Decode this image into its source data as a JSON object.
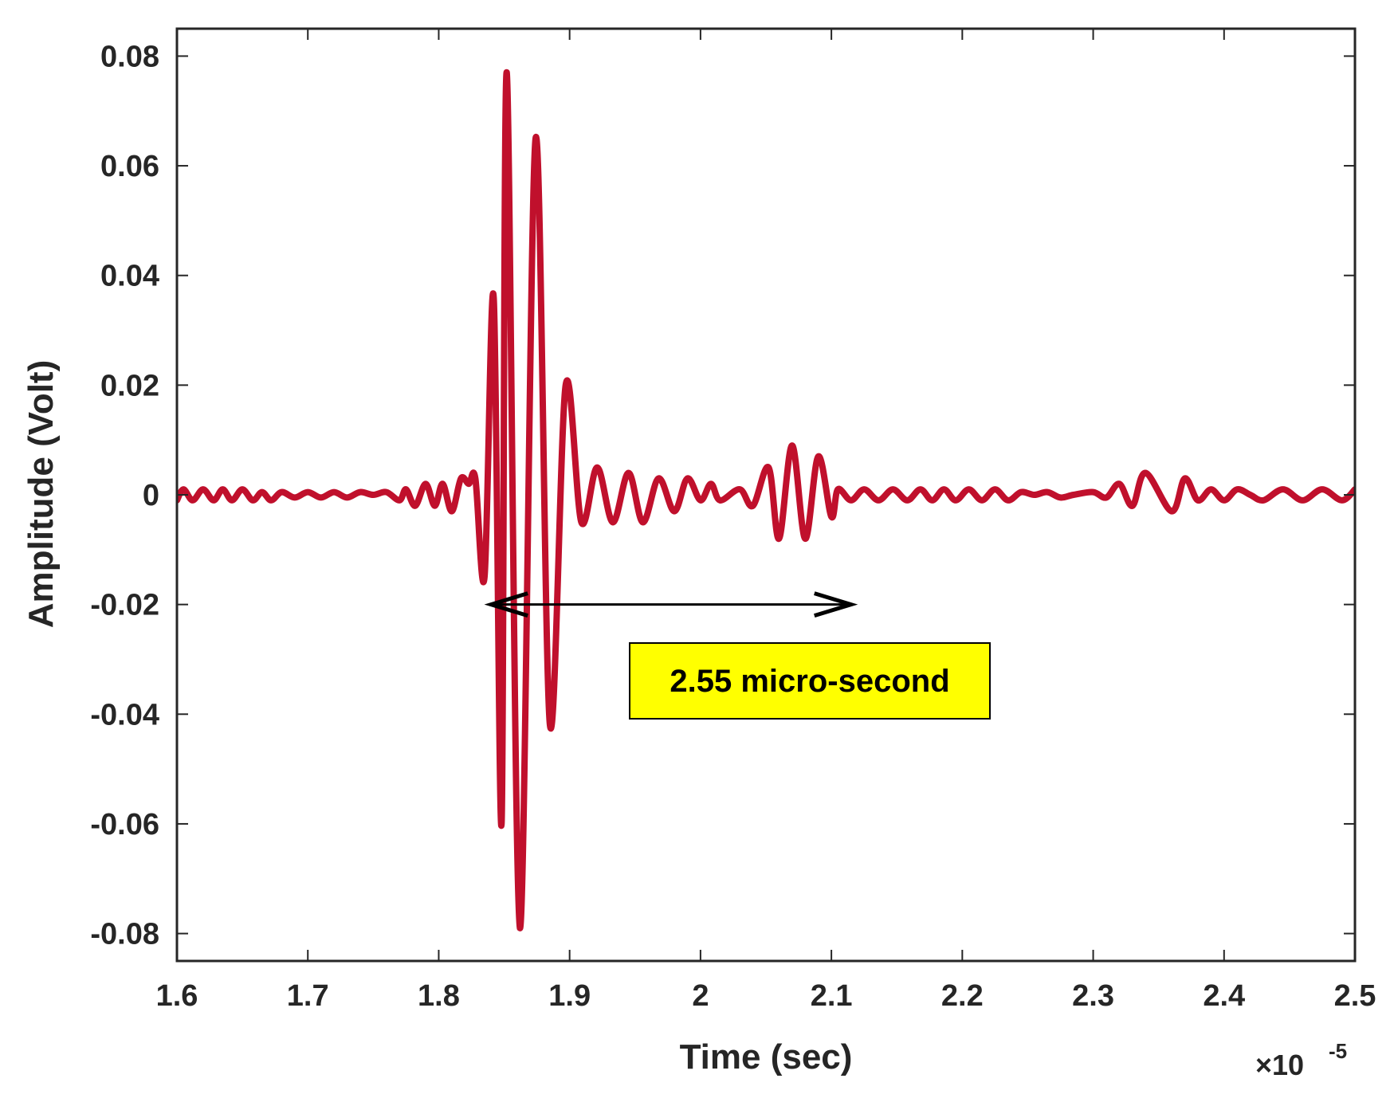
{
  "chart_data": {
    "type": "line",
    "title": "",
    "xlabel": "Time (sec)",
    "ylabel": "Amplitude (Volt)",
    "x_exponent_base": "×10",
    "x_exponent_power": "-5",
    "xlim": [
      1.6,
      2.5
    ],
    "ylim": [
      -0.085,
      0.085
    ],
    "x_ticks": [
      1.6,
      1.7,
      1.8,
      1.9,
      2.0,
      2.1,
      2.2,
      2.3,
      2.4,
      2.5
    ],
    "x_tick_labels": [
      "1.6",
      "1.7",
      "1.8",
      "1.9",
      "2",
      "2.1",
      "2.2",
      "2.3",
      "2.4",
      "2.5"
    ],
    "y_ticks": [
      0.08,
      0.06,
      0.04,
      0.02,
      0,
      -0.02,
      -0.04,
      -0.06,
      -0.08
    ],
    "y_tick_labels": [
      "0.08",
      "0.06",
      "0.04",
      "0.02",
      "0",
      "-0.02",
      "-0.04",
      "-0.06",
      "-0.08"
    ],
    "grid": false,
    "legend": "none",
    "series_color": "#c0102c",
    "series": [
      {
        "x": [
          1.6,
          1.605,
          1.612,
          1.62,
          1.628,
          1.635,
          1.642,
          1.65,
          1.658,
          1.665,
          1.672,
          1.68,
          1.69,
          1.7,
          1.71,
          1.72,
          1.73,
          1.74,
          1.75,
          1.76,
          1.77,
          1.775,
          1.782,
          1.79,
          1.797,
          1.803,
          1.81,
          1.817,
          1.823,
          1.828,
          1.835,
          1.842,
          1.848,
          1.852,
          1.862,
          1.874,
          1.885,
          1.897,
          1.909,
          1.921,
          1.933,
          1.945,
          1.956,
          1.968,
          1.98,
          1.99,
          2.0,
          2.008,
          2.015,
          2.03,
          2.04,
          2.052,
          2.06,
          2.07,
          2.08,
          2.09,
          2.1,
          2.105,
          2.115,
          2.125,
          2.136,
          2.147,
          2.158,
          2.168,
          2.177,
          2.186,
          2.195,
          2.205,
          2.215,
          2.225,
          2.235,
          2.245,
          2.255,
          2.265,
          2.275,
          2.285,
          2.3,
          2.31,
          2.32,
          2.33,
          2.34,
          2.36,
          2.37,
          2.38,
          2.39,
          2.4,
          2.41,
          2.42,
          2.43,
          2.445,
          2.46,
          2.475,
          2.49,
          2.5
        ],
        "y": [
          -0.001,
          0.001,
          -0.001,
          0.001,
          -0.001,
          0.001,
          -0.001,
          0.001,
          -0.001,
          0.0005,
          -0.001,
          0.0005,
          -0.0005,
          0.0005,
          -0.0005,
          0.0005,
          -0.0005,
          0.0005,
          0.0,
          0.0005,
          -0.001,
          0.001,
          -0.002,
          0.002,
          -0.002,
          0.002,
          -0.003,
          0.003,
          0.002,
          0.003,
          -0.015,
          0.036,
          -0.06,
          0.077,
          -0.079,
          0.065,
          -0.042,
          0.02,
          -0.005,
          0.005,
          -0.005,
          0.004,
          -0.005,
          0.003,
          -0.003,
          0.003,
          -0.001,
          0.002,
          -0.001,
          0.001,
          -0.002,
          0.005,
          -0.008,
          0.009,
          -0.008,
          0.007,
          -0.004,
          0.001,
          -0.001,
          0.001,
          -0.001,
          0.001,
          -0.001,
          0.001,
          -0.001,
          0.001,
          -0.001,
          0.001,
          -0.001,
          0.001,
          -0.001,
          0.0005,
          0.0,
          0.0005,
          -0.0005,
          0.0,
          0.0005,
          -0.0005,
          0.002,
          -0.002,
          0.004,
          -0.003,
          0.003,
          -0.001,
          0.001,
          -0.001,
          0.001,
          0.0,
          -0.001,
          0.001,
          -0.001,
          0.001,
          -0.001,
          0.001
        ]
      }
    ],
    "annotation": {
      "text": "2.55 micro-second",
      "box_color": "#ffff00",
      "arrow_from_x": 1.84,
      "arrow_to_x": 2.115,
      "arrow_y": -0.02
    }
  }
}
